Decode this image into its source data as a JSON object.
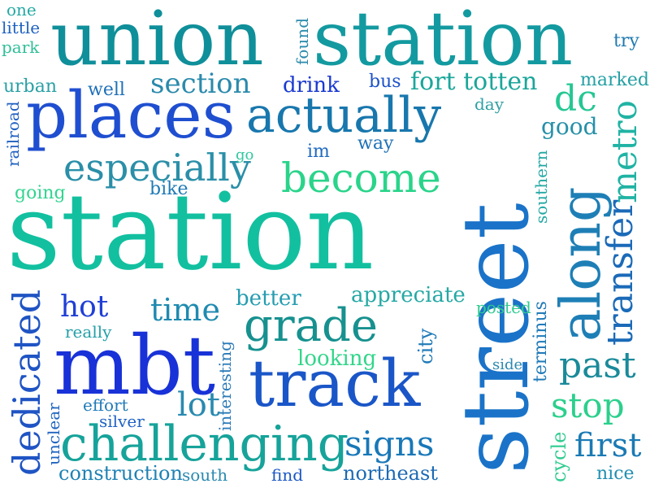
{
  "words": [
    {
      "text": "station",
      "color": "#12c0a0"
    },
    {
      "text": "street",
      "color": "#1a73c8"
    },
    {
      "text": "union",
      "color": "#0f8f9a"
    },
    {
      "text": "station",
      "color": "#139aa0"
    },
    {
      "text": "places",
      "color": "#1f4fd0"
    },
    {
      "text": "mbt",
      "color": "#1832d8"
    },
    {
      "text": "track",
      "color": "#1a56c8"
    },
    {
      "text": "along",
      "color": "#1e7fb6"
    },
    {
      "text": "challenging",
      "color": "#16a39a"
    },
    {
      "text": "actually",
      "color": "#1877ad"
    },
    {
      "text": "become",
      "color": "#2ad48a"
    },
    {
      "text": "especially",
      "color": "#2a8fa8"
    },
    {
      "text": "grade",
      "color": "#16918f"
    },
    {
      "text": "dedicated",
      "color": "#1f54c4"
    },
    {
      "text": "transfer",
      "color": "#1a6ab8"
    },
    {
      "text": "metro",
      "color": "#20b3a4"
    },
    {
      "text": "past",
      "color": "#1a8a9a"
    },
    {
      "text": "fort totten",
      "color": "#1aa69a"
    },
    {
      "text": "section",
      "color": "#2a8aac"
    },
    {
      "text": "time",
      "color": "#1f8ab0"
    },
    {
      "text": "signs",
      "color": "#1878b8"
    },
    {
      "text": "first",
      "color": "#1a7ab4"
    },
    {
      "text": "stop",
      "color": "#2bd08c"
    },
    {
      "text": "lot",
      "color": "#2a8ab0"
    },
    {
      "text": "dc",
      "color": "#25c793"
    },
    {
      "text": "hot",
      "color": "#1f3fd6"
    },
    {
      "text": "drink",
      "color": "#1b3ad0"
    },
    {
      "text": "good",
      "color": "#2690a8"
    },
    {
      "text": "better",
      "color": "#259db0"
    },
    {
      "text": "appreciate",
      "color": "#25a8a4"
    },
    {
      "text": "looking",
      "color": "#32d68a"
    },
    {
      "text": "construction",
      "color": "#1f82b4"
    },
    {
      "text": "northeast",
      "color": "#1c6ab4"
    },
    {
      "text": "city",
      "color": "#1f7ab8"
    },
    {
      "text": "terminus",
      "color": "#1f7ab8"
    },
    {
      "text": "cycle",
      "color": "#30cc90"
    },
    {
      "text": "bus",
      "color": "#1c52c8"
    },
    {
      "text": "marked",
      "color": "#25a0a4"
    },
    {
      "text": "try",
      "color": "#1f7ab0"
    },
    {
      "text": "well",
      "color": "#1f70b8"
    },
    {
      "text": "urban",
      "color": "#2aa0a4"
    },
    {
      "text": "one",
      "color": "#25a8a4"
    },
    {
      "text": "little",
      "color": "#1d60c0"
    },
    {
      "text": "park",
      "color": "#2fbf98"
    },
    {
      "text": "railroad",
      "color": "#1f60c0"
    },
    {
      "text": "found",
      "color": "#2a8aac"
    },
    {
      "text": "go",
      "color": "#32c8a0"
    },
    {
      "text": "im",
      "color": "#1f6ac0"
    },
    {
      "text": "way",
      "color": "#1f72b6"
    },
    {
      "text": "day",
      "color": "#2fa0a4"
    },
    {
      "text": "going",
      "color": "#33d490"
    },
    {
      "text": "bike",
      "color": "#1f7ab6"
    },
    {
      "text": "southern",
      "color": "#23a8a4"
    },
    {
      "text": "really",
      "color": "#25a0a8"
    },
    {
      "text": "interesting",
      "color": "#2a7ab8"
    },
    {
      "text": "effort",
      "color": "#1f7ab8"
    },
    {
      "text": "silver",
      "color": "#1f62c4"
    },
    {
      "text": "unclear",
      "color": "#1f64c0"
    },
    {
      "text": "south",
      "color": "#2a8ab0"
    },
    {
      "text": "find",
      "color": "#1a56c4"
    },
    {
      "text": "side",
      "color": "#2a88b0"
    },
    {
      "text": "posted",
      "color": "#30cc90"
    },
    {
      "text": "nice",
      "color": "#2090b0"
    }
  ]
}
